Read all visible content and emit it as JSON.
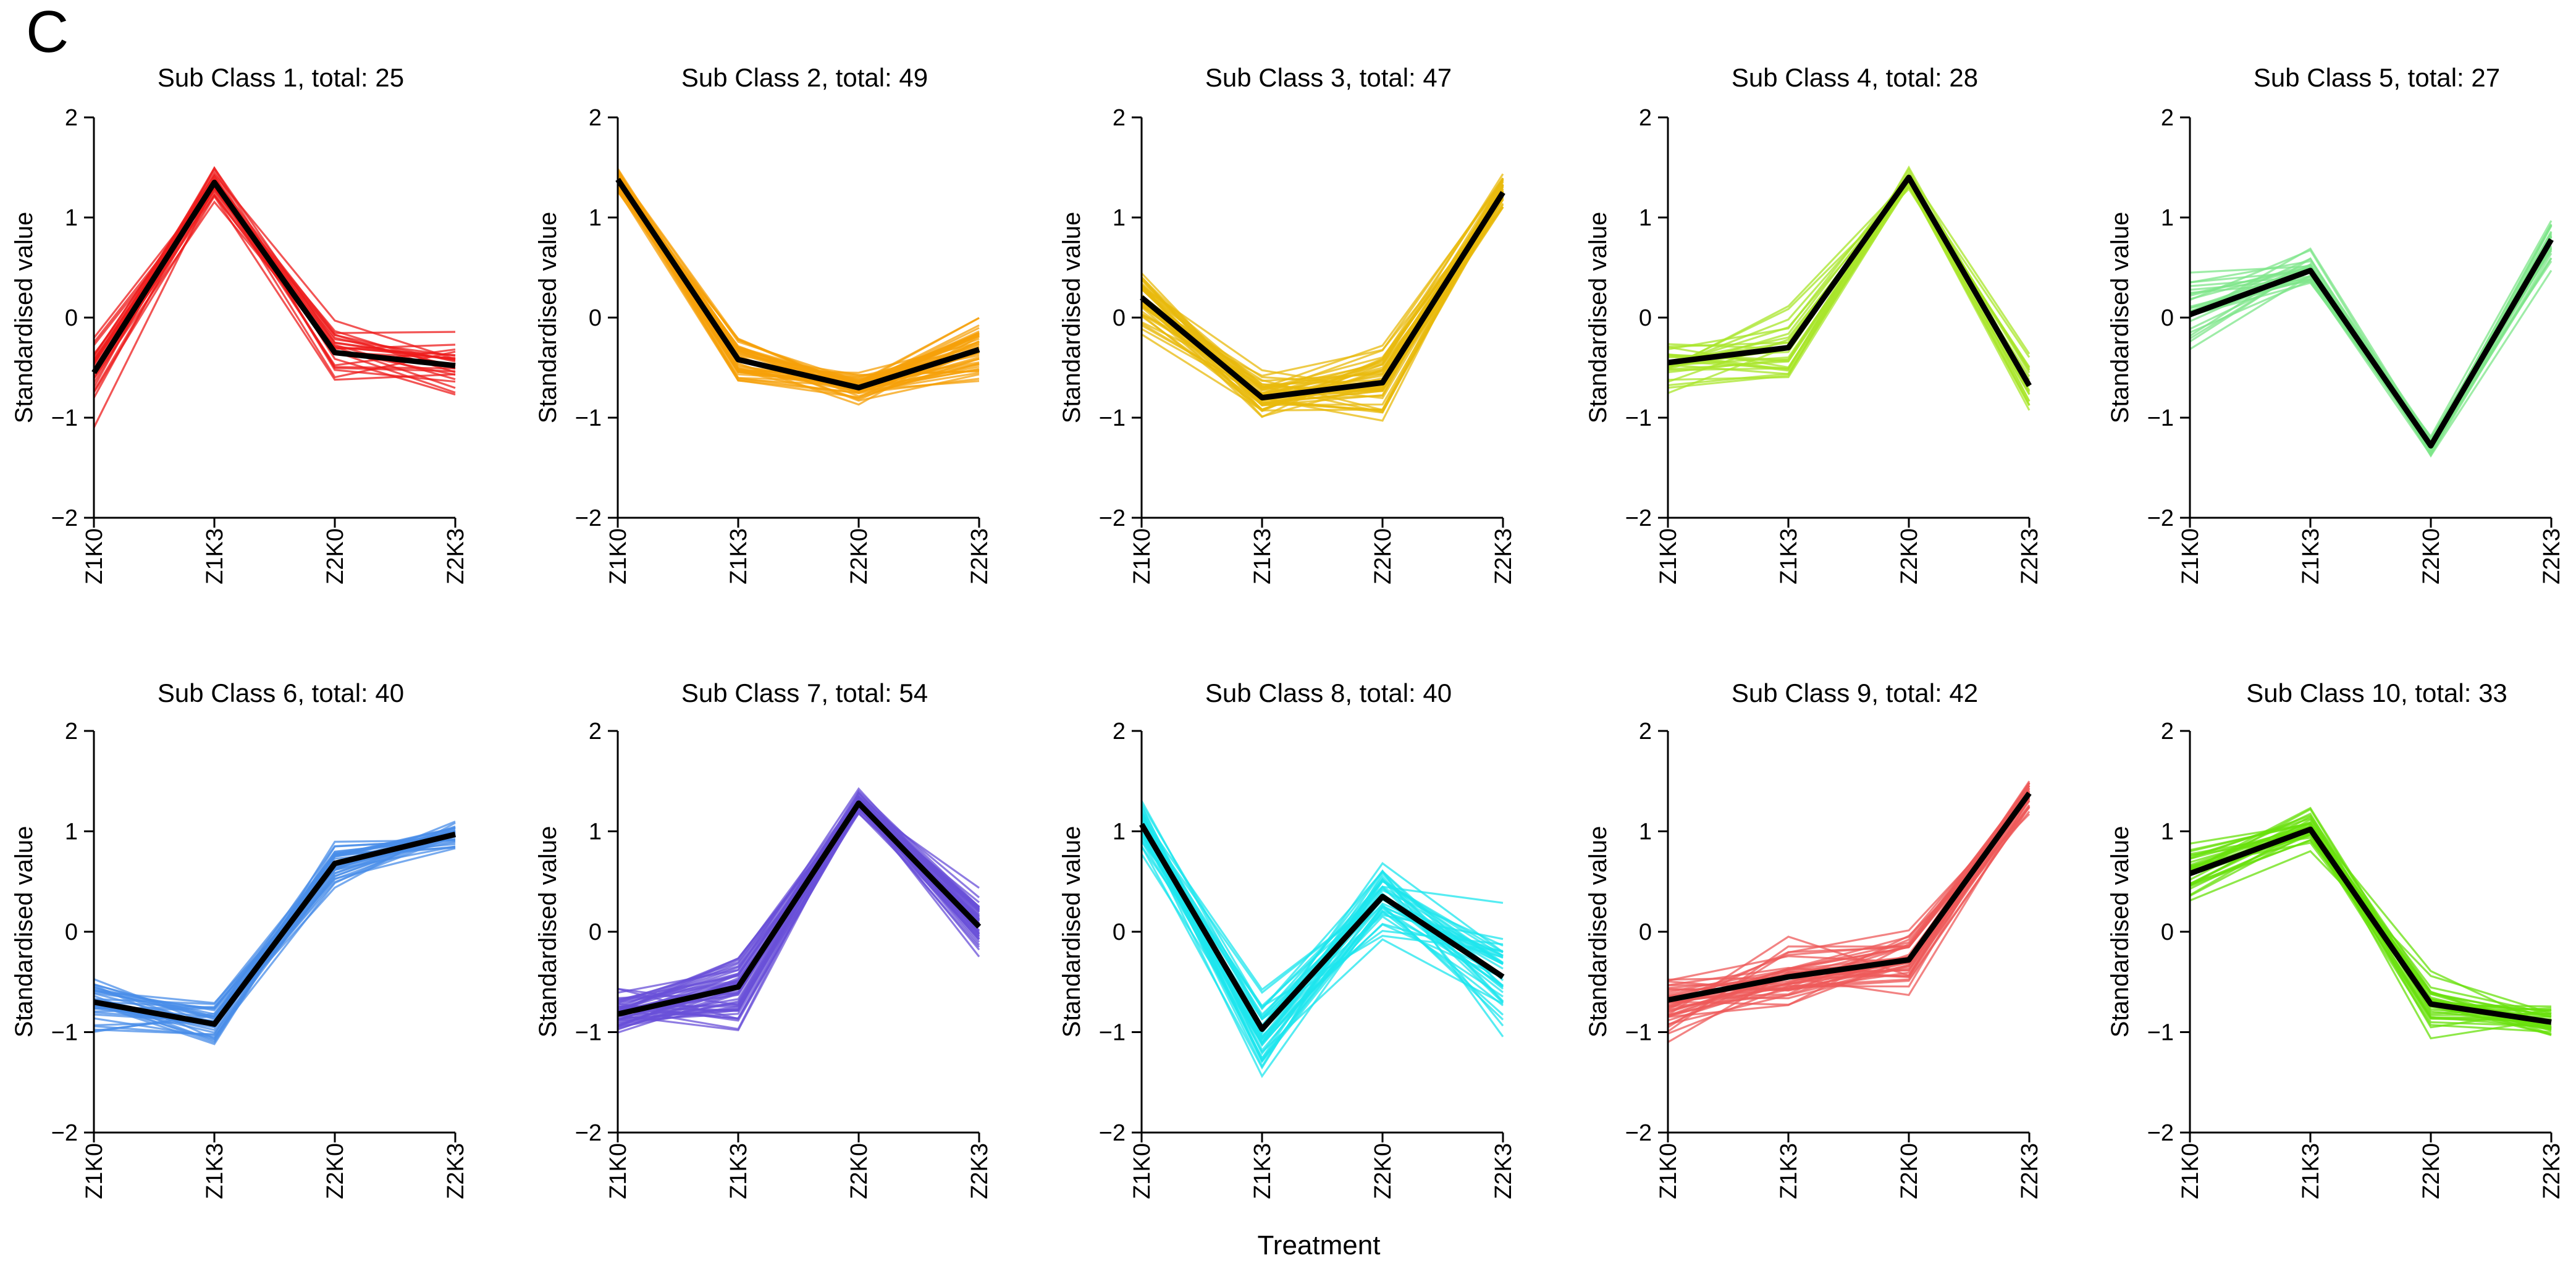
{
  "figure": {
    "panel_letter": "C",
    "x_axis_label": "Treatment"
  },
  "chart_data": [
    {
      "type": "line",
      "title": "Sub Class 1, total: 25",
      "ylabel": "Standardised value",
      "categories": [
        "Z1K0",
        "Z1K3",
        "Z2K0",
        "Z2K3"
      ],
      "ylim": [
        -2,
        2
      ],
      "yticks": [
        -2,
        -1,
        0,
        1,
        2
      ],
      "color": "#ee1c1c",
      "n_members": 25,
      "spread": [
        0.62,
        0.25,
        0.45,
        0.45
      ],
      "mean": [
        -0.55,
        1.35,
        -0.35,
        -0.48
      ]
    },
    {
      "type": "line",
      "title": "Sub Class 2, total: 49",
      "ylabel": "Standardised value",
      "categories": [
        "Z1K0",
        "Z1K3",
        "Z2K0",
        "Z2K3"
      ],
      "ylim": [
        -2,
        2
      ],
      "yticks": [
        -2,
        -1,
        0,
        1,
        2
      ],
      "color": "#f5a00a",
      "n_members": 49,
      "spread": [
        0.15,
        0.38,
        0.25,
        0.5
      ],
      "mean": [
        1.38,
        -0.42,
        -0.7,
        -0.32
      ]
    },
    {
      "type": "line",
      "title": "Sub Class 3, total: 47",
      "ylabel": "Standardised value",
      "categories": [
        "Z1K0",
        "Z1K3",
        "Z2K0",
        "Z2K3"
      ],
      "ylim": [
        -2,
        2
      ],
      "yticks": [
        -2,
        -1,
        0,
        1,
        2
      ],
      "color": "#e8b90c",
      "n_members": 47,
      "spread": [
        0.45,
        0.35,
        0.45,
        0.22
      ],
      "mean": [
        0.2,
        -0.8,
        -0.65,
        1.25
      ]
    },
    {
      "type": "line",
      "title": "Sub Class 4, total: 28",
      "ylabel": "Standardised value",
      "categories": [
        "Z1K0",
        "Z1K3",
        "Z2K0",
        "Z2K3"
      ],
      "ylim": [
        -2,
        2
      ],
      "yticks": [
        -2,
        -1,
        0,
        1,
        2
      ],
      "color": "#a8e62a",
      "n_members": 28,
      "spread": [
        0.38,
        0.48,
        0.15,
        0.38
      ],
      "mean": [
        -0.45,
        -0.3,
        1.4,
        -0.68
      ]
    },
    {
      "type": "line",
      "title": "Sub Class 5, total: 27",
      "ylabel": "Standardised value",
      "categories": [
        "Z1K0",
        "Z1K3",
        "Z2K0",
        "Z2K3"
      ],
      "ylim": [
        -2,
        2
      ],
      "yticks": [
        -2,
        -1,
        0,
        1,
        2
      ],
      "color": "#7ee68a",
      "n_members": 27,
      "spread": [
        0.55,
        0.32,
        0.2,
        0.42
      ],
      "mean": [
        0.03,
        0.47,
        -1.28,
        0.78
      ]
    },
    {
      "type": "line",
      "title": "Sub Class 6, total: 40",
      "ylabel": "Standardised value",
      "categories": [
        "Z1K0",
        "Z1K3",
        "Z2K0",
        "Z2K3"
      ],
      "ylim": [
        -2,
        2
      ],
      "yticks": [
        -2,
        -1,
        0,
        1,
        2
      ],
      "color": "#4a8ee8",
      "n_members": 40,
      "spread": [
        0.42,
        0.32,
        0.32,
        0.22
      ],
      "mean": [
        -0.7,
        -0.92,
        0.68,
        0.97
      ]
    },
    {
      "type": "line",
      "title": "Sub Class 7, total: 54",
      "ylabel": "Standardised value",
      "categories": [
        "Z1K0",
        "Z1K3",
        "Z2K0",
        "Z2K3"
      ],
      "ylim": [
        -2,
        2
      ],
      "yticks": [
        -2,
        -1,
        0,
        1,
        2
      ],
      "color": "#6a50d8",
      "n_members": 54,
      "spread": [
        0.3,
        0.48,
        0.18,
        0.42
      ],
      "mean": [
        -0.82,
        -0.55,
        1.28,
        0.05
      ]
    },
    {
      "type": "line",
      "title": "Sub Class 8, total: 40",
      "ylabel": "Standardised value",
      "categories": [
        "Z1K0",
        "Z1K3",
        "Z2K0",
        "Z2K3"
      ],
      "ylim": [
        -2,
        2
      ],
      "yticks": [
        -2,
        -1,
        0,
        1,
        2
      ],
      "color": "#1ee6ee",
      "n_members": 40,
      "spread": [
        0.35,
        0.55,
        0.6,
        0.85
      ],
      "mean": [
        1.07,
        -0.97,
        0.35,
        -0.45
      ]
    },
    {
      "type": "line",
      "title": "Sub Class 9, total: 42",
      "ylabel": "Standardised value",
      "categories": [
        "Z1K0",
        "Z1K3",
        "Z2K0",
        "Z2K3"
      ],
      "ylim": [
        -2,
        2
      ],
      "yticks": [
        -2,
        -1,
        0,
        1,
        2
      ],
      "color": "#ee5a5a",
      "n_members": 42,
      "spread": [
        0.45,
        0.5,
        0.45,
        0.28
      ],
      "mean": [
        -0.68,
        -0.45,
        -0.28,
        1.38
      ]
    },
    {
      "type": "line",
      "title": "Sub Class 10, total: 33",
      "ylabel": "Standardised value",
      "categories": [
        "Z1K0",
        "Z1K3",
        "Z2K0",
        "Z2K3"
      ],
      "ylim": [
        -2,
        2
      ],
      "yticks": [
        -2,
        -1,
        0,
        1,
        2
      ],
      "color": "#68e00c",
      "n_members": 33,
      "spread": [
        0.42,
        0.28,
        0.38,
        0.25
      ],
      "mean": [
        0.58,
        1.02,
        -0.72,
        -0.9
      ]
    }
  ]
}
